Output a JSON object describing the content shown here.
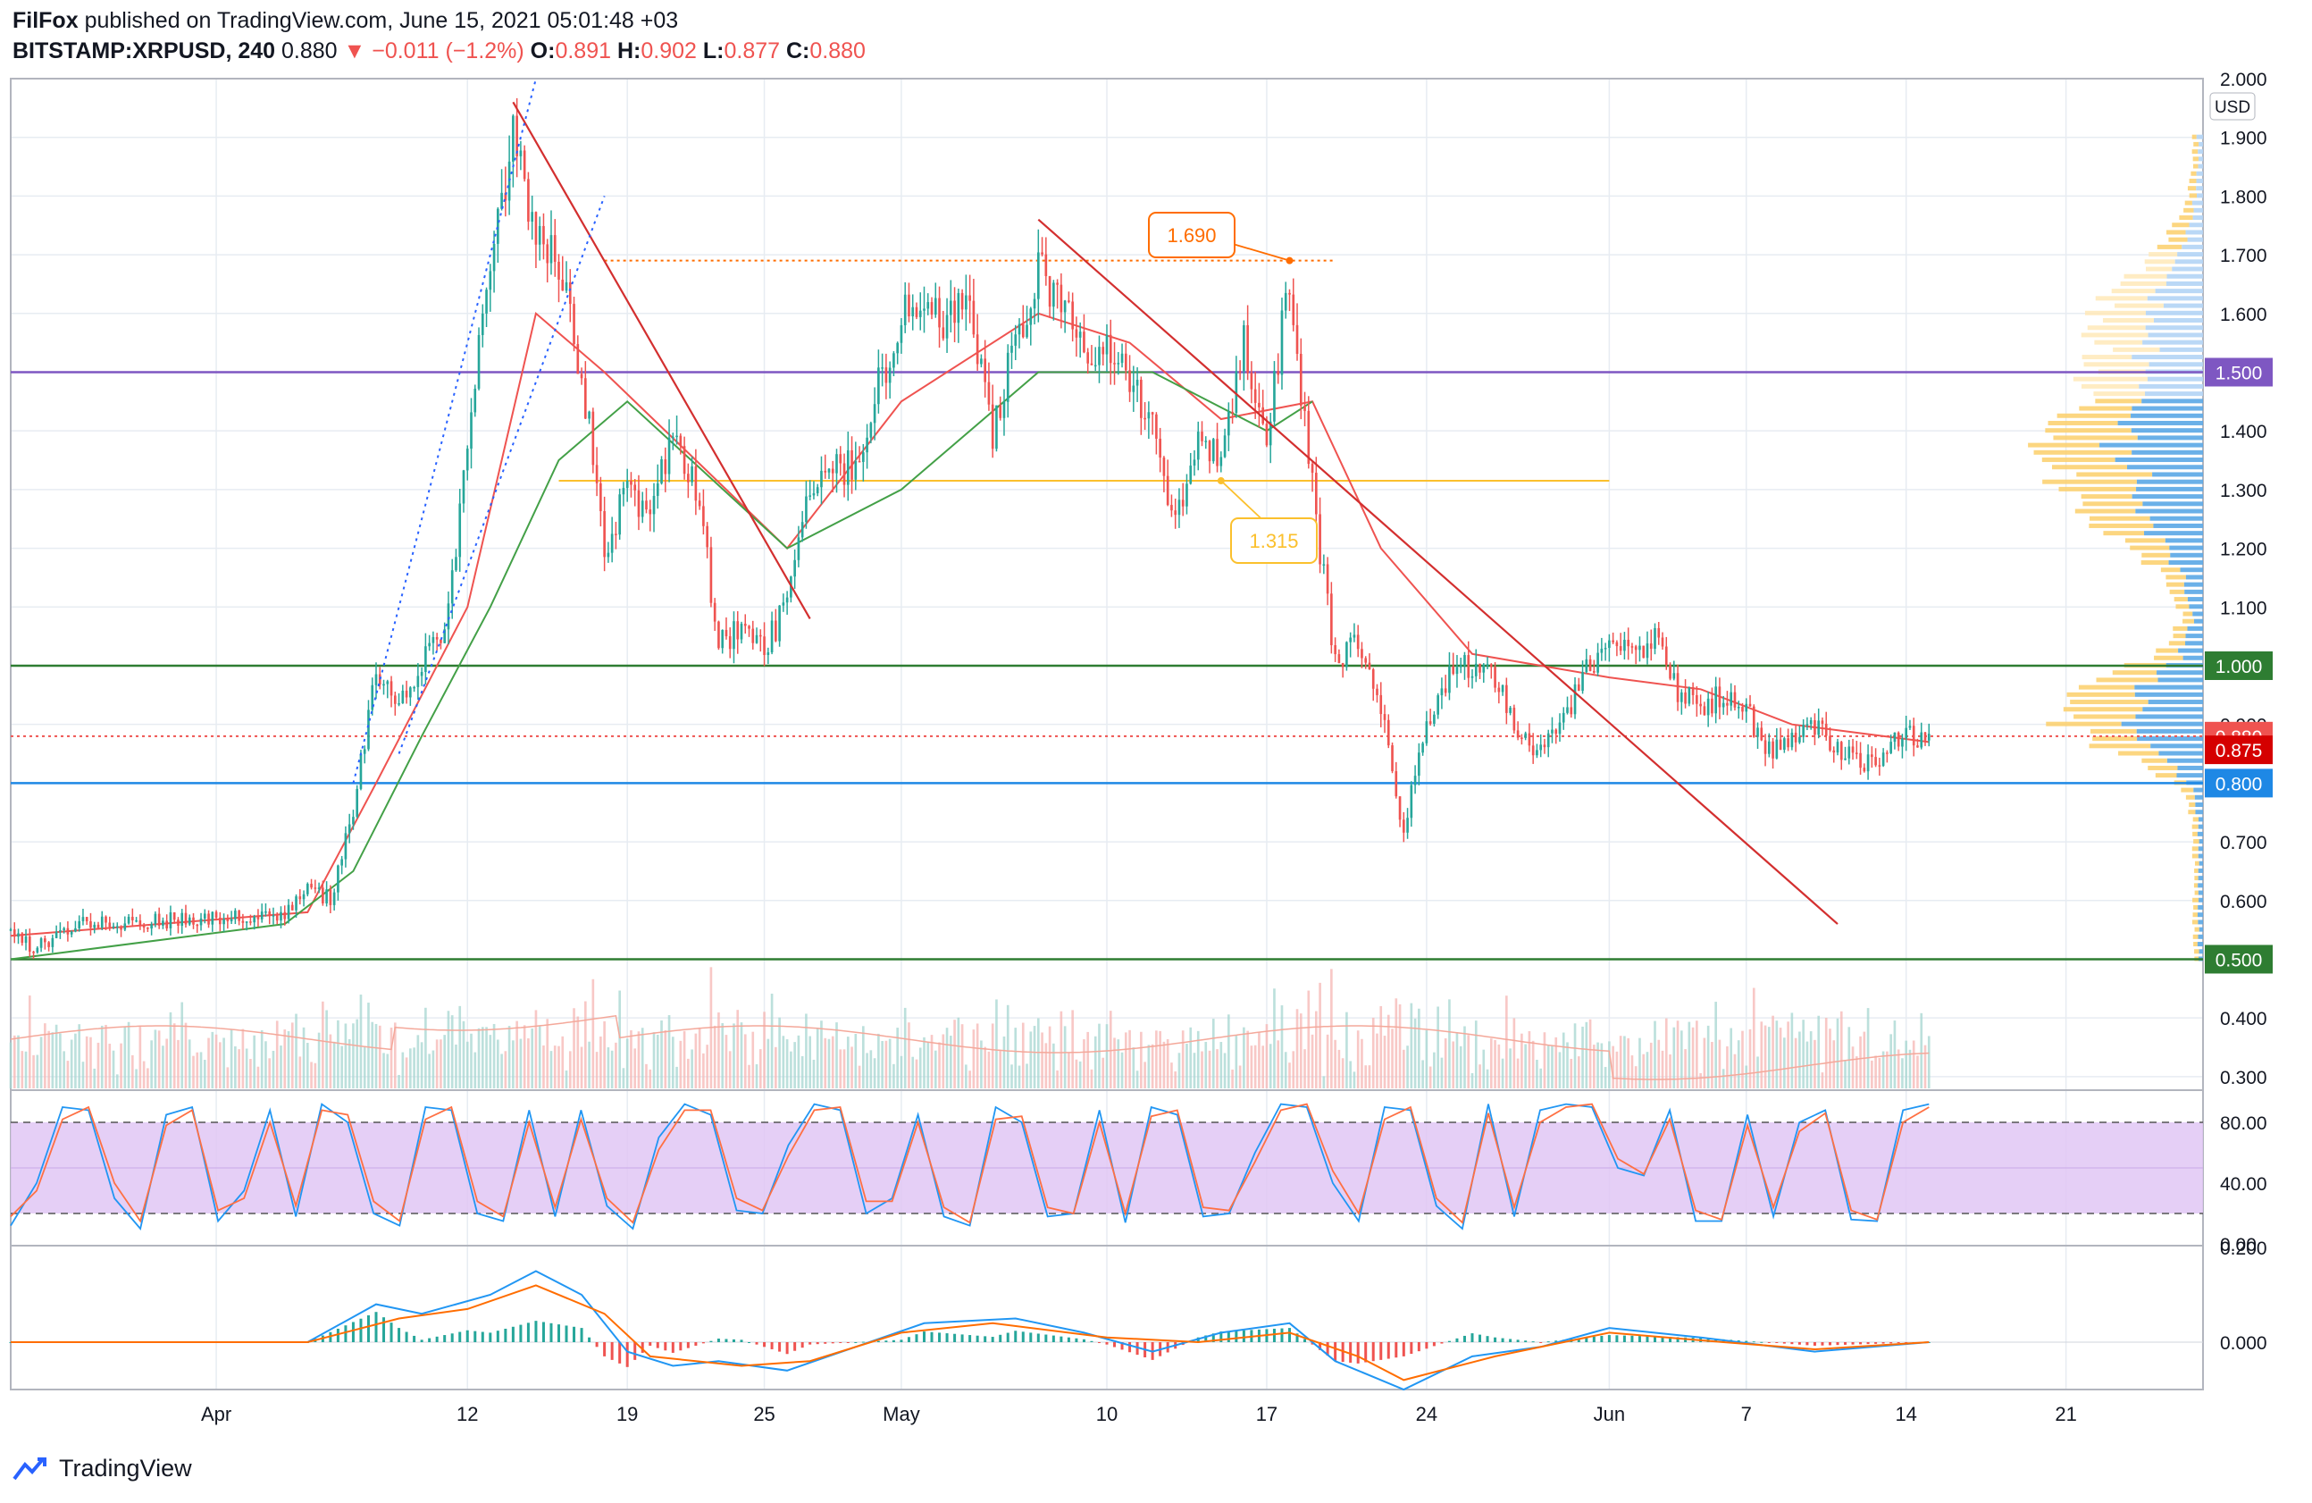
{
  "header": {
    "publisher": "FilFox",
    "published_text": "published on TradingView.com, June 15, 2021 05:01:48 +03",
    "symbol": "BITSTAMP:XRPUSD",
    "interval": "240",
    "last": "0.880",
    "change": "−0.011 (−1.2%)",
    "o_label": "O:",
    "o_value": "0.891",
    "h_label": "H:",
    "h_value": "0.902",
    "l_label": "L:",
    "l_value": "0.877",
    "c_label": "C:",
    "c_value": "0.880"
  },
  "footer": {
    "brand": "TradingView"
  },
  "colors": {
    "up": "#26a69a",
    "down": "#ef5350",
    "grid": "#e7ecf2",
    "trend": "#d32f2f",
    "ma_fast": "#ef5350",
    "ma_slow": "#43a047",
    "channel": "#2962ff",
    "purple_line": "#7e57c2",
    "green_line": "#2e7d32",
    "blue_line": "#1e88e5",
    "stoch_band": "#e1c7f5",
    "macd": "#2196f3",
    "signal": "#ff6d00"
  },
  "chart_data": [
    {
      "type": "candlestick",
      "pane": "price",
      "currency_badge": "USD",
      "ylim": [
        0.28,
        2.0
      ],
      "y_ticks": [
        "0.300",
        "0.400",
        "0.500",
        "0.600",
        "0.700",
        "0.800",
        "0.900",
        "1.000",
        "1.100",
        "1.200",
        "1.300",
        "1.400",
        "1.500",
        "1.600",
        "1.700",
        "1.800",
        "1.900",
        "2.000"
      ],
      "x_ticks": [
        "Apr",
        "12",
        "19",
        "25",
        "May",
        "10",
        "17",
        "24",
        "Jun",
        "7",
        "14",
        "21"
      ],
      "x_domain_days": [
        "2021-03-23",
        "2021-06-27"
      ],
      "path_points": [
        [
          "2021-03-23",
          0.55
        ],
        [
          "2021-03-24",
          0.52
        ],
        [
          "2021-03-25",
          0.54
        ],
        [
          "2021-03-26",
          0.56
        ],
        [
          "2021-03-28",
          0.56
        ],
        [
          "2021-03-31",
          0.57
        ],
        [
          "2021-04-02",
          0.57
        ],
        [
          "2021-04-04",
          0.58
        ],
        [
          "2021-04-05",
          0.63
        ],
        [
          "2021-04-06",
          0.6
        ],
        [
          "2021-04-07",
          0.75
        ],
        [
          "2021-04-08",
          1.0
        ],
        [
          "2021-04-09",
          0.95
        ],
        [
          "2021-04-10",
          1.0
        ],
        [
          "2021-04-11",
          1.05
        ],
        [
          "2021-04-12",
          1.38
        ],
        [
          "2021-04-13",
          1.7
        ],
        [
          "2021-04-14",
          1.9
        ],
        [
          "2021-04-15",
          1.72
        ],
        [
          "2021-04-16",
          1.7
        ],
        [
          "2021-04-17",
          1.5
        ],
        [
          "2021-04-18",
          1.2
        ],
        [
          "2021-04-19",
          1.3
        ],
        [
          "2021-04-20",
          1.25
        ],
        [
          "2021-04-21",
          1.4
        ],
        [
          "2021-04-22",
          1.3
        ],
        [
          "2021-04-23",
          1.05
        ],
        [
          "2021-04-24",
          1.05
        ],
        [
          "2021-04-25",
          1.03
        ],
        [
          "2021-04-26",
          1.1
        ],
        [
          "2021-04-27",
          1.3
        ],
        [
          "2021-04-29",
          1.35
        ],
        [
          "2021-05-01",
          1.6
        ],
        [
          "2021-05-02",
          1.58
        ],
        [
          "2021-05-04",
          1.62
        ],
        [
          "2021-05-05",
          1.4
        ],
        [
          "2021-05-06",
          1.55
        ],
        [
          "2021-05-07",
          1.68
        ],
        [
          "2021-05-08",
          1.6
        ],
        [
          "2021-05-09",
          1.55
        ],
        [
          "2021-05-10",
          1.55
        ],
        [
          "2021-05-11",
          1.5
        ],
        [
          "2021-05-12",
          1.4
        ],
        [
          "2021-05-13",
          1.25
        ],
        [
          "2021-05-14",
          1.4
        ],
        [
          "2021-05-15",
          1.35
        ],
        [
          "2021-05-16",
          1.55
        ],
        [
          "2021-05-17",
          1.4
        ],
        [
          "2021-05-18",
          1.65
        ],
        [
          "2021-05-19",
          1.3
        ],
        [
          "2021-05-20",
          1.0
        ],
        [
          "2021-05-21",
          1.05
        ],
        [
          "2021-05-22",
          0.92
        ],
        [
          "2021-05-23",
          0.72
        ],
        [
          "2021-05-24",
          0.9
        ],
        [
          "2021-05-25",
          0.98
        ],
        [
          "2021-05-26",
          1.0
        ],
        [
          "2021-05-27",
          0.98
        ],
        [
          "2021-05-28",
          0.88
        ],
        [
          "2021-05-29",
          0.85
        ],
        [
          "2021-05-30",
          0.9
        ],
        [
          "2021-05-31",
          1.0
        ],
        [
          "2021-06-01",
          1.03
        ],
        [
          "2021-06-02",
          1.02
        ],
        [
          "2021-06-03",
          1.04
        ],
        [
          "2021-06-04",
          0.95
        ],
        [
          "2021-06-05",
          0.93
        ],
        [
          "2021-06-06",
          0.95
        ],
        [
          "2021-06-07",
          0.92
        ],
        [
          "2021-06-08",
          0.85
        ],
        [
          "2021-06-09",
          0.88
        ],
        [
          "2021-06-10",
          0.9
        ],
        [
          "2021-06-11",
          0.86
        ],
        [
          "2021-06-12",
          0.83
        ],
        [
          "2021-06-13",
          0.85
        ],
        [
          "2021-06-14",
          0.88
        ],
        [
          "2021-06-15",
          0.88
        ]
      ],
      "ma_fast_points": [
        [
          "2021-03-23",
          0.54
        ],
        [
          "2021-04-05",
          0.58
        ],
        [
          "2021-04-08",
          0.8
        ],
        [
          "2021-04-12",
          1.1
        ],
        [
          "2021-04-15",
          1.6
        ],
        [
          "2021-04-18",
          1.5
        ],
        [
          "2021-04-22",
          1.35
        ],
        [
          "2021-04-26",
          1.2
        ],
        [
          "2021-05-01",
          1.45
        ],
        [
          "2021-05-07",
          1.6
        ],
        [
          "2021-05-11",
          1.55
        ],
        [
          "2021-05-15",
          1.42
        ],
        [
          "2021-05-19",
          1.45
        ],
        [
          "2021-05-22",
          1.2
        ],
        [
          "2021-05-26",
          1.02
        ],
        [
          "2021-06-01",
          0.98
        ],
        [
          "2021-06-05",
          0.96
        ],
        [
          "2021-06-09",
          0.9
        ],
        [
          "2021-06-15",
          0.87
        ]
      ],
      "ma_slow_points": [
        [
          "2021-03-23",
          0.5
        ],
        [
          "2021-04-04",
          0.56
        ],
        [
          "2021-04-07",
          0.65
        ],
        [
          "2021-04-10",
          0.88
        ],
        [
          "2021-04-13",
          1.1
        ],
        [
          "2021-04-16",
          1.35
        ],
        [
          "2021-04-19",
          1.45
        ],
        [
          "2021-04-26",
          1.2
        ],
        [
          "2021-05-01",
          1.3
        ],
        [
          "2021-05-07",
          1.5
        ],
        [
          "2021-05-12",
          1.5
        ],
        [
          "2021-05-17",
          1.4
        ],
        [
          "2021-05-19",
          1.45
        ]
      ],
      "trendlines": [
        {
          "from": [
            "2021-04-14",
            1.96
          ],
          "to": [
            "2021-04-27",
            1.08
          ]
        },
        {
          "from": [
            "2021-05-07",
            1.76
          ],
          "to": [
            "2021-06-11",
            0.56
          ]
        }
      ],
      "channel_lines": [
        {
          "from": [
            "2021-04-07",
            0.8
          ],
          "to": [
            "2021-04-15",
            2.0
          ]
        },
        {
          "from": [
            "2021-04-09",
            0.85
          ],
          "to": [
            "2021-04-18",
            1.8
          ]
        }
      ],
      "horizontal_levels": [
        {
          "value": "1.500",
          "color": "#7e57c2"
        },
        {
          "value": "1.000",
          "color": "#2e7d32"
        },
        {
          "value": "0.800",
          "color": "#1e88e5"
        },
        {
          "value": "0.500",
          "color": "#2e7d32"
        }
      ],
      "last_price_labels": [
        {
          "value": "0.880",
          "color": "#ef5350"
        },
        {
          "value": "0.875",
          "color": "#d50000"
        }
      ],
      "callouts": [
        {
          "text": "1.690",
          "color": "#ff6d00",
          "anchor": [
            "2021-05-18",
            1.69
          ]
        },
        {
          "text": "1.315",
          "color": "#fbc02d",
          "anchor": [
            "2021-05-15",
            1.315
          ]
        }
      ],
      "volume_profile_note": "volume profile histogram on right edge (blue and yellow bars)"
    },
    {
      "type": "line",
      "pane": "stochastic",
      "ylim": [
        0,
        100
      ],
      "y_ticks": [
        "0.00",
        "40.00",
        "80.00"
      ],
      "band": [
        20,
        80
      ],
      "series_k": [
        12,
        40,
        90,
        88,
        30,
        10,
        85,
        90,
        15,
        35,
        88,
        18,
        92,
        80,
        20,
        12,
        90,
        88,
        20,
        15,
        88,
        18,
        88,
        25,
        10,
        70,
        92,
        85,
        22,
        20,
        65,
        92,
        88,
        20,
        30,
        85,
        18,
        12,
        90,
        80,
        18,
        20,
        88,
        14,
        90,
        85,
        18,
        20,
        60,
        92,
        90,
        40,
        15,
        90,
        88,
        25,
        10,
        92,
        18,
        88,
        92,
        90,
        50,
        45,
        88,
        15,
        15,
        85,
        18,
        80,
        88,
        16,
        15,
        88,
        92
      ],
      "series_d": [
        18,
        35,
        82,
        90,
        40,
        15,
        78,
        88,
        22,
        30,
        80,
        25,
        88,
        85,
        28,
        15,
        82,
        90,
        28,
        18,
        80,
        24,
        82,
        30,
        14,
        62,
        88,
        88,
        30,
        22,
        58,
        88,
        90,
        28,
        28,
        80,
        24,
        14,
        82,
        84,
        24,
        20,
        80,
        20,
        84,
        88,
        24,
        22,
        54,
        88,
        92,
        48,
        20,
        82,
        90,
        30,
        14,
        86,
        24,
        80,
        90,
        92,
        56,
        46,
        82,
        22,
        16,
        78,
        24,
        74,
        86,
        22,
        16,
        80,
        90
      ]
    },
    {
      "type": "line",
      "pane": "macd",
      "ylim": [
        -0.1,
        0.2
      ],
      "y_ticks": [
        "0.000",
        "0.200"
      ],
      "macd_points": [
        [
          "2021-03-23",
          0.0
        ],
        [
          "2021-04-05",
          0.0
        ],
        [
          "2021-04-08",
          0.08
        ],
        [
          "2021-04-10",
          0.06
        ],
        [
          "2021-04-13",
          0.1
        ],
        [
          "2021-04-15",
          0.15
        ],
        [
          "2021-04-17",
          0.1
        ],
        [
          "2021-04-19",
          -0.02
        ],
        [
          "2021-04-21",
          -0.05
        ],
        [
          "2021-04-23",
          -0.04
        ],
        [
          "2021-04-26",
          -0.06
        ],
        [
          "2021-04-29",
          -0.01
        ],
        [
          "2021-05-02",
          0.04
        ],
        [
          "2021-05-06",
          0.05
        ],
        [
          "2021-05-09",
          0.02
        ],
        [
          "2021-05-12",
          -0.02
        ],
        [
          "2021-05-15",
          0.02
        ],
        [
          "2021-05-18",
          0.04
        ],
        [
          "2021-05-20",
          -0.04
        ],
        [
          "2021-05-23",
          -0.1
        ],
        [
          "2021-05-26",
          -0.03
        ],
        [
          "2021-05-29",
          -0.01
        ],
        [
          "2021-06-01",
          0.03
        ],
        [
          "2021-06-05",
          0.01
        ],
        [
          "2021-06-10",
          -0.02
        ],
        [
          "2021-06-15",
          0.0
        ]
      ],
      "signal_points": [
        [
          "2021-03-23",
          0.0
        ],
        [
          "2021-04-05",
          0.0
        ],
        [
          "2021-04-09",
          0.05
        ],
        [
          "2021-04-12",
          0.07
        ],
        [
          "2021-04-15",
          0.12
        ],
        [
          "2021-04-18",
          0.06
        ],
        [
          "2021-04-20",
          -0.03
        ],
        [
          "2021-04-24",
          -0.05
        ],
        [
          "2021-04-27",
          -0.04
        ],
        [
          "2021-05-01",
          0.02
        ],
        [
          "2021-05-05",
          0.04
        ],
        [
          "2021-05-10",
          0.01
        ],
        [
          "2021-05-14",
          0.0
        ],
        [
          "2021-05-18",
          0.02
        ],
        [
          "2021-05-21",
          -0.03
        ],
        [
          "2021-05-23",
          -0.08
        ],
        [
          "2021-05-27",
          -0.03
        ],
        [
          "2021-06-01",
          0.02
        ],
        [
          "2021-06-06",
          0.0
        ],
        [
          "2021-06-10",
          -0.015
        ],
        [
          "2021-06-15",
          0.0
        ]
      ]
    }
  ]
}
